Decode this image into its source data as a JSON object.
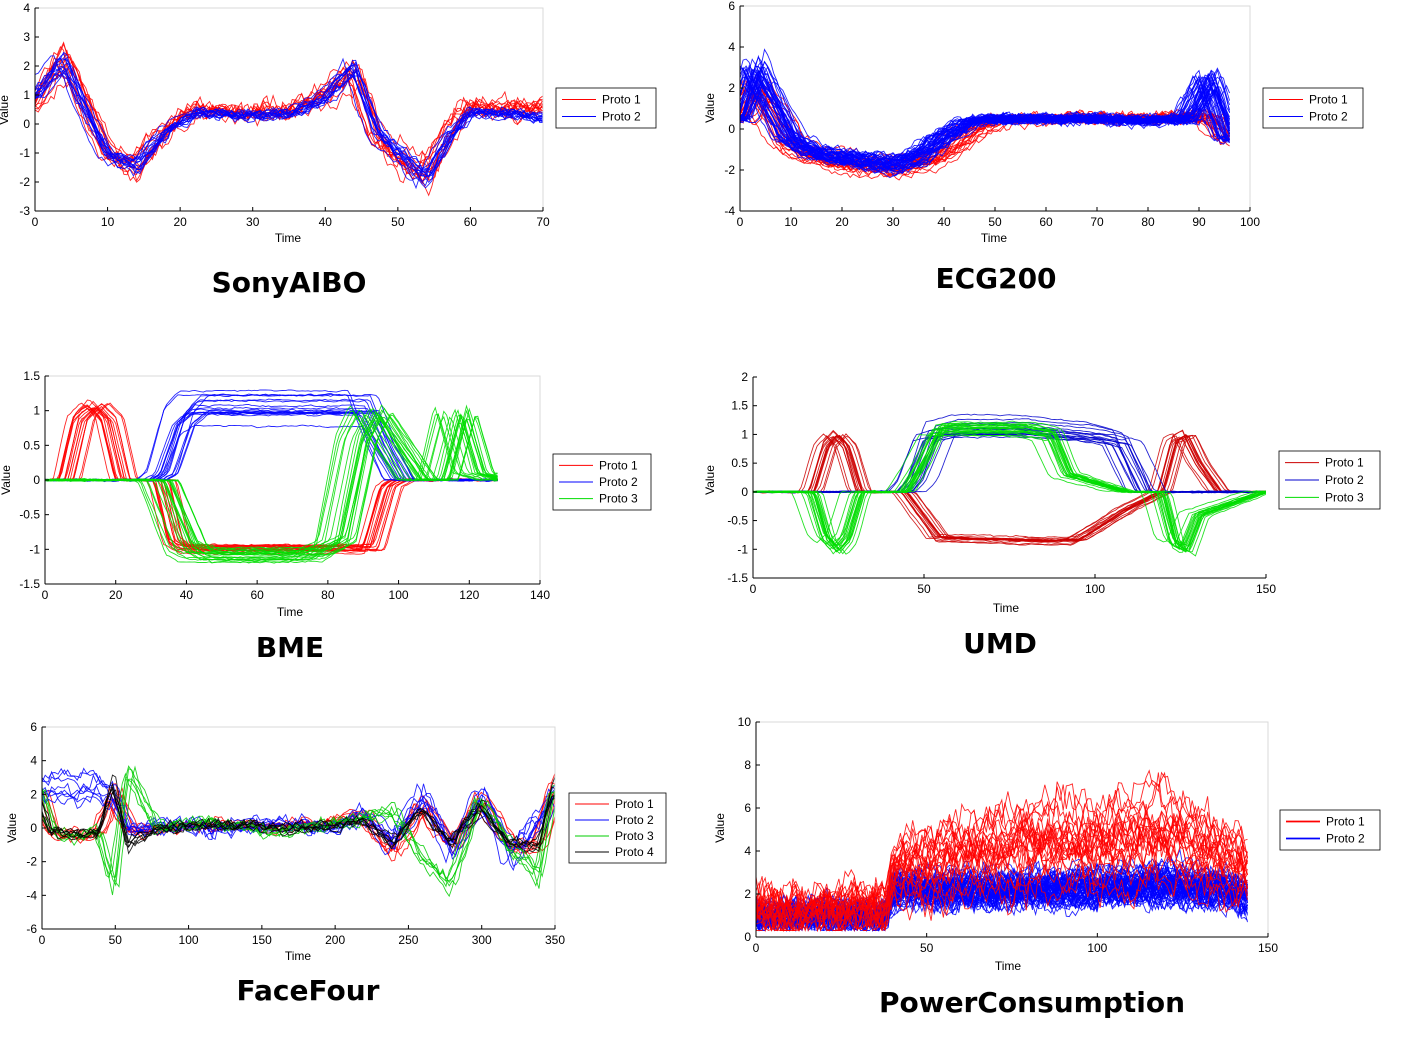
{
  "chart_data": [
    {
      "type": "line",
      "title": "SonyAIBO",
      "xlabel": "Time",
      "ylabel": "Value",
      "xlim": [
        0,
        70
      ],
      "ylim": [
        -3,
        4
      ],
      "xticks": [
        0,
        10,
        20,
        30,
        40,
        50,
        60,
        70
      ],
      "yticks": [
        -3,
        -2,
        -1,
        0,
        1,
        2,
        3,
        4
      ],
      "legend_position": "right",
      "series": [
        {
          "name": "Proto 1",
          "color": "#ff0000",
          "count": 12,
          "noise": 0.45,
          "shift": 1.5,
          "amp": 0.25,
          "x": [
            0,
            4,
            8,
            10,
            14,
            18,
            22,
            30,
            36,
            40,
            44,
            47,
            50,
            54,
            57,
            60,
            65,
            70
          ],
          "y": [
            0.6,
            2.4,
            0.3,
            -1.0,
            -1.6,
            -0.2,
            0.5,
            0.4,
            0.5,
            1.0,
            1.9,
            -0.3,
            -1.2,
            -1.7,
            -0.3,
            0.6,
            0.5,
            0.6
          ]
        },
        {
          "name": "Proto 2",
          "color": "#0000ff",
          "count": 14,
          "noise": 0.25,
          "shift": 1.0,
          "amp": 0.2,
          "x": [
            0,
            4,
            8,
            10,
            14,
            18,
            22,
            30,
            36,
            40,
            44,
            47,
            50,
            54,
            57,
            60,
            65,
            70
          ],
          "y": [
            1.0,
            2.2,
            0.0,
            -1.0,
            -1.5,
            -0.3,
            0.4,
            0.3,
            0.4,
            0.9,
            2.0,
            -0.2,
            -1.0,
            -1.9,
            -0.5,
            0.4,
            0.4,
            0.2
          ]
        }
      ]
    },
    {
      "type": "line",
      "title": "ECG200",
      "xlabel": "Time",
      "ylabel": "Value",
      "xlim": [
        0,
        100
      ],
      "ylim": [
        -4,
        6
      ],
      "xticks": [
        0,
        10,
        20,
        30,
        40,
        50,
        60,
        70,
        80,
        90,
        100
      ],
      "yticks": [
        -4,
        -2,
        0,
        2,
        4,
        6
      ],
      "legend_position": "right",
      "series": [
        {
          "name": "Proto 1",
          "color": "#ff0000",
          "count": 22,
          "noise": 0.35,
          "shift": 4.0,
          "amp": 0.2,
          "x": [
            0,
            3,
            6,
            10,
            15,
            22,
            30,
            35,
            40,
            45,
            50,
            60,
            70,
            80,
            88,
            92,
            96
          ],
          "y": [
            0.5,
            2.0,
            1.0,
            -0.8,
            -1.3,
            -1.7,
            -1.8,
            -1.7,
            -1.2,
            -0.2,
            0.4,
            0.5,
            0.5,
            0.5,
            0.6,
            0.6,
            -0.5
          ]
        },
        {
          "name": "Proto 2",
          "color": "#0000ff",
          "count": 45,
          "noise": 0.3,
          "shift": 3.0,
          "amp": 0.25,
          "x": [
            0,
            3,
            6,
            10,
            15,
            22,
            30,
            35,
            40,
            45,
            50,
            60,
            70,
            80,
            88,
            92,
            96
          ],
          "y": [
            0.5,
            3.0,
            1.5,
            -0.5,
            -1.2,
            -1.5,
            -1.8,
            -1.4,
            -0.4,
            0.4,
            0.5,
            0.5,
            0.5,
            0.4,
            0.5,
            2.5,
            -0.5
          ]
        }
      ]
    },
    {
      "type": "line",
      "title": "BME",
      "xlabel": "Time",
      "ylabel": "Value",
      "xlim": [
        0,
        140
      ],
      "ylim": [
        -1.5,
        1.5
      ],
      "xticks": [
        0,
        20,
        40,
        60,
        80,
        100,
        120,
        140
      ],
      "yticks": [
        -1.5,
        -1,
        -0.5,
        0,
        0.5,
        1,
        1.5
      ],
      "legend_position": "right",
      "series": [
        {
          "name": "Proto 1",
          "color": "#ff0000",
          "count": 18,
          "noise": 0.02,
          "shift": 4.0,
          "amp": 0.08,
          "x": [
            0,
            6,
            10,
            14,
            18,
            22,
            30,
            33,
            37,
            40,
            60,
            80,
            88,
            92,
            97,
            100,
            128
          ],
          "y": [
            0,
            0,
            0.9,
            1.1,
            0.9,
            0,
            0,
            0,
            -0.9,
            -1.0,
            -1.0,
            -1.0,
            -1.0,
            -1.0,
            -0.1,
            0,
            0
          ]
        },
        {
          "name": "Proto 2",
          "color": "#0000ff",
          "count": 18,
          "noise": 0.02,
          "shift": 5.0,
          "amp": 0.2,
          "x": [
            0,
            30,
            33,
            38,
            42,
            60,
            80,
            90,
            95,
            100,
            128
          ],
          "y": [
            0,
            0,
            0.1,
            0.9,
            1.1,
            1.1,
            1.1,
            1.1,
            0.5,
            0,
            0
          ]
        },
        {
          "name": "Proto 3",
          "color": "#00dd00",
          "count": 22,
          "noise": 0.02,
          "shift": 6.0,
          "amp": 0.15,
          "x": [
            0,
            32,
            36,
            40,
            44,
            60,
            75,
            82,
            88,
            92,
            105,
            111,
            116,
            121,
            128
          ],
          "y": [
            0,
            0,
            -0.5,
            -1.0,
            -1.1,
            -1.1,
            -1.1,
            -0.9,
            0.6,
            1.0,
            0,
            0,
            1.0,
            0.1,
            0
          ]
        }
      ]
    },
    {
      "type": "line",
      "title": "UMD",
      "xlabel": "Time",
      "ylabel": "Value",
      "xlim": [
        0,
        150
      ],
      "ylim": [
        -1.5,
        2
      ],
      "xticks": [
        0,
        50,
        100,
        150
      ],
      "yticks": [
        -1.5,
        -1,
        -0.5,
        0,
        0.5,
        1,
        1.5,
        2
      ],
      "legend_position": "right",
      "series": [
        {
          "name": "Proto 1",
          "color": "#cc0000",
          "count": 16,
          "noise": 0.02,
          "shift": 4.0,
          "amp": 0.08,
          "x": [
            0,
            18,
            22,
            25,
            28,
            32,
            45,
            50,
            55,
            80,
            95,
            110,
            120,
            124,
            127,
            131,
            137,
            150
          ],
          "y": [
            0,
            0,
            0.8,
            1.0,
            0.8,
            0,
            0,
            -0.4,
            -0.8,
            -0.85,
            -0.85,
            -0.3,
            0,
            0.9,
            1.0,
            0.5,
            0,
            0
          ]
        },
        {
          "name": "Proto 2",
          "color": "#0000cc",
          "count": 16,
          "noise": 0.02,
          "shift": 5.0,
          "amp": 0.15,
          "x": [
            0,
            45,
            48,
            53,
            60,
            80,
            100,
            108,
            115,
            150
          ],
          "y": [
            0,
            0,
            0.2,
            1.0,
            1.1,
            1.1,
            1.0,
            0.9,
            0,
            0
          ]
        },
        {
          "name": "Proto 3",
          "color": "#00dd00",
          "count": 20,
          "noise": 0.02,
          "shift": 5.0,
          "amp": 0.12,
          "x": [
            0,
            18,
            22,
            25,
            28,
            32,
            45,
            50,
            55,
            80,
            88,
            93,
            110,
            120,
            124,
            127,
            131,
            150
          ],
          "y": [
            0,
            0,
            -0.8,
            -1.0,
            -0.8,
            0,
            0,
            0.5,
            1.1,
            1.1,
            1.0,
            0.3,
            0,
            0,
            -0.9,
            -1.0,
            -0.4,
            0
          ]
        }
      ]
    },
    {
      "type": "line",
      "title": "FaceFour",
      "xlabel": "Time",
      "ylabel": "Value",
      "xlim": [
        0,
        350
      ],
      "ylim": [
        -6,
        6
      ],
      "xticks": [
        0,
        50,
        100,
        150,
        200,
        250,
        300,
        350
      ],
      "yticks": [
        -6,
        -4,
        -2,
        0,
        2,
        4,
        6
      ],
      "legend_position": "right",
      "series": [
        {
          "name": "Proto 1",
          "color": "#ff0000",
          "count": 8,
          "noise": 0.5,
          "shift": 5.0,
          "amp": 0.3,
          "x": [
            0,
            8,
            20,
            40,
            50,
            60,
            80,
            120,
            160,
            200,
            220,
            240,
            260,
            280,
            300,
            320,
            340,
            350
          ],
          "y": [
            2.0,
            -0.3,
            -0.5,
            -0.2,
            2.2,
            -0.2,
            0.0,
            0.2,
            0.0,
            0.3,
            0.8,
            -1.5,
            1.5,
            -1.2,
            1.8,
            -1.2,
            -1.0,
            2.5
          ]
        },
        {
          "name": "Proto 2",
          "color": "#0000ff",
          "count": 8,
          "noise": 0.7,
          "shift": 5.0,
          "amp": 0.3,
          "x": [
            0,
            8,
            20,
            40,
            50,
            60,
            80,
            120,
            160,
            200,
            220,
            240,
            260,
            280,
            300,
            320,
            340,
            350
          ],
          "y": [
            2.5,
            2.5,
            2.4,
            2.4,
            2.0,
            -0.2,
            0.2,
            0.0,
            0.3,
            -0.1,
            1.0,
            -1.0,
            2.0,
            -1.5,
            2.0,
            -1.8,
            0.5,
            2.0
          ]
        },
        {
          "name": "Proto 3",
          "color": "#00cc00",
          "count": 6,
          "noise": 0.6,
          "shift": 5.0,
          "amp": 0.3,
          "x": [
            0,
            8,
            20,
            40,
            50,
            60,
            80,
            120,
            160,
            200,
            220,
            240,
            260,
            280,
            300,
            320,
            340,
            350
          ],
          "y": [
            2.0,
            0.0,
            -0.5,
            -0.2,
            -3.0,
            3.0,
            0.0,
            0.3,
            -0.3,
            0.2,
            0.5,
            1.0,
            -1.5,
            -3.0,
            1.5,
            -0.8,
            -2.5,
            2.0
          ]
        },
        {
          "name": "Proto 4",
          "color": "#000000",
          "count": 6,
          "noise": 0.5,
          "shift": 5.0,
          "amp": 0.3,
          "x": [
            0,
            8,
            20,
            40,
            50,
            60,
            80,
            120,
            160,
            200,
            220,
            240,
            260,
            280,
            300,
            320,
            340,
            350
          ],
          "y": [
            1.5,
            -0.2,
            -0.4,
            -0.3,
            3.0,
            -1.2,
            0.0,
            0.2,
            0.0,
            0.1,
            0.6,
            -1.0,
            1.2,
            -1.0,
            1.5,
            -1.0,
            -1.2,
            2.5
          ]
        }
      ]
    },
    {
      "type": "line",
      "title": "PowerConsumption",
      "xlabel": "Time",
      "ylabel": "Value",
      "xlim": [
        0,
        150
      ],
      "ylim": [
        0,
        10
      ],
      "xticks": [
        0,
        50,
        100,
        150
      ],
      "yticks": [
        0,
        2,
        4,
        6,
        8,
        10
      ],
      "legend_position": "right",
      "series": [
        {
          "name": "Proto 2",
          "color": "#0000ff",
          "count": 60,
          "noise": 0.9,
          "shift": 0,
          "amp": 0.3,
          "x": [
            0,
            20,
            38,
            40,
            60,
            80,
            100,
            120,
            135,
            144
          ],
          "y": [
            1.0,
            1.0,
            1.0,
            2.2,
            2.2,
            2.2,
            2.3,
            2.5,
            2.3,
            2.0
          ]
        },
        {
          "name": "Proto 1",
          "color": "#ff0000",
          "count": 24,
          "noise": 1.5,
          "shift": 0,
          "amp": 0.5,
          "x": [
            0,
            20,
            38,
            40,
            60,
            80,
            100,
            120,
            135,
            144
          ],
          "y": [
            1.2,
            1.2,
            1.2,
            2.8,
            3.5,
            4.0,
            4.0,
            4.5,
            3.5,
            2.8
          ]
        }
      ]
    }
  ]
}
